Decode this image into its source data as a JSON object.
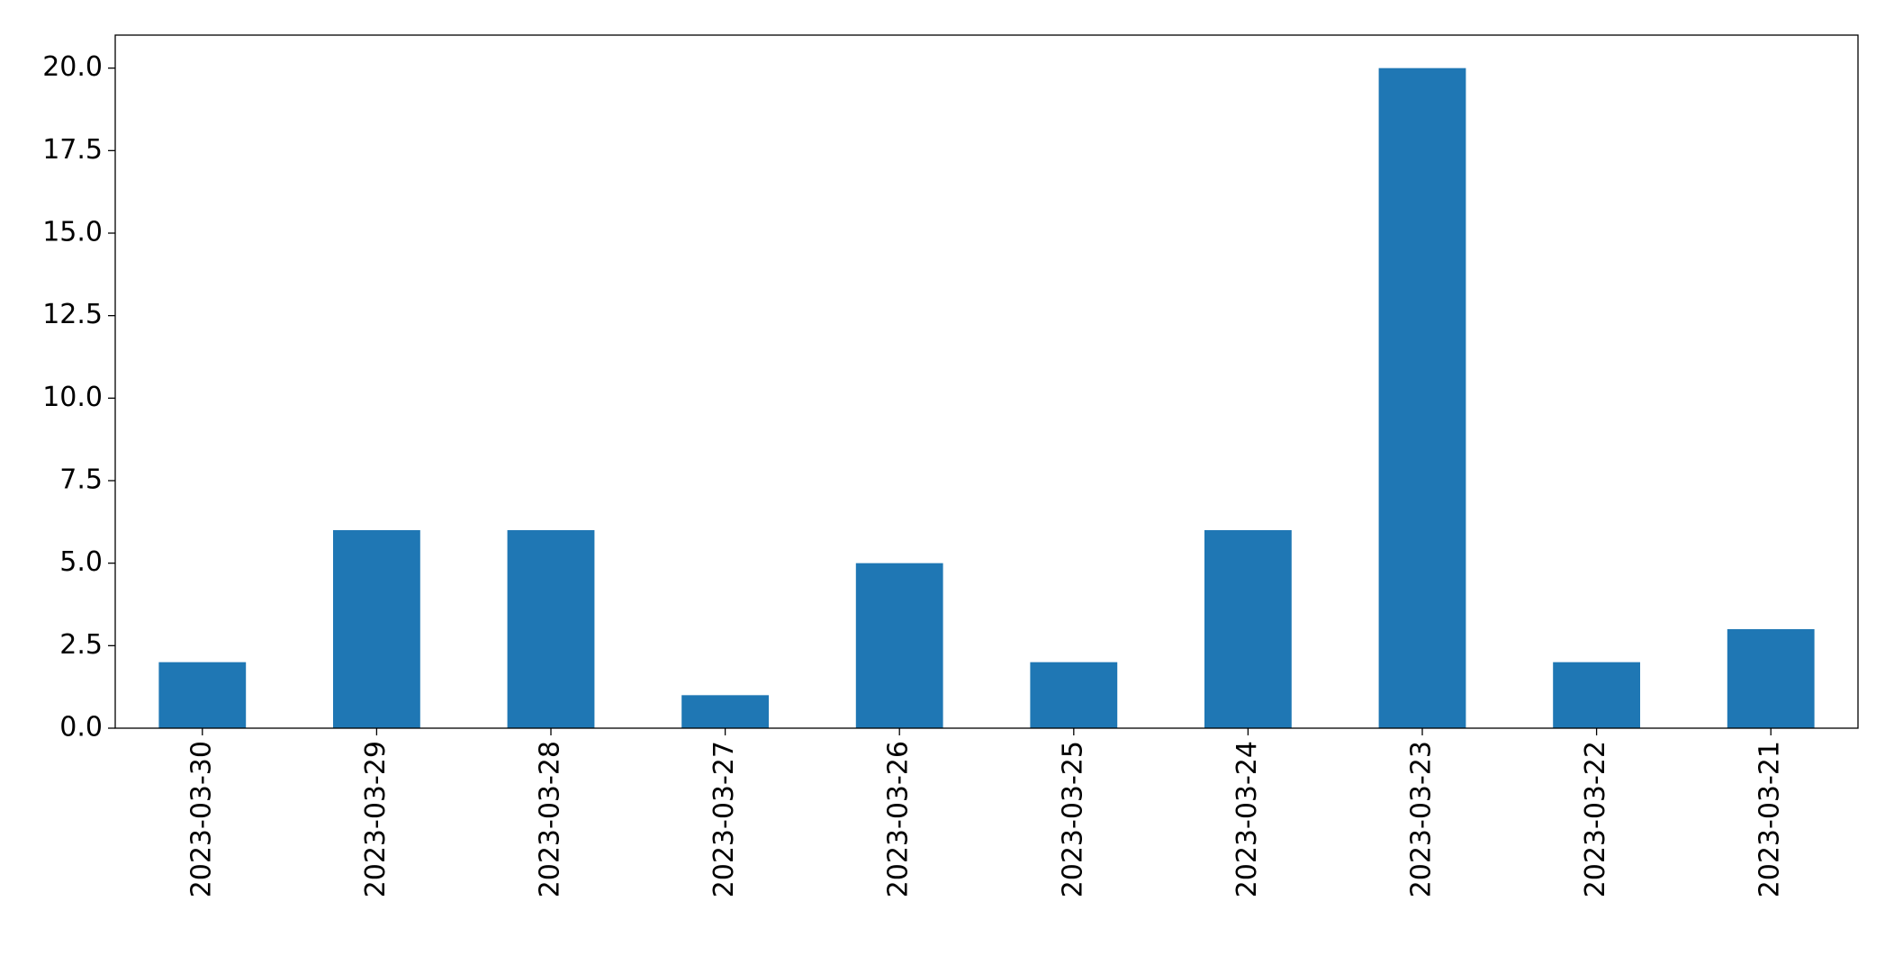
{
  "chart_data": {
    "type": "bar",
    "categories": [
      "2023-03-30",
      "2023-03-29",
      "2023-03-28",
      "2023-03-27",
      "2023-03-26",
      "2023-03-25",
      "2023-03-24",
      "2023-03-23",
      "2023-03-22",
      "2023-03-21"
    ],
    "values": [
      2,
      6,
      6,
      1,
      5,
      2,
      6,
      20,
      2,
      3
    ],
    "color": "#1f77b4",
    "ylim": [
      0,
      21
    ],
    "yticks": [
      {
        "value": 0,
        "label": "0.0"
      },
      {
        "value": 2.5,
        "label": "2.5"
      },
      {
        "value": 5,
        "label": "5.0"
      },
      {
        "value": 7.5,
        "label": "7.5"
      },
      {
        "value": 10,
        "label": "10.0"
      },
      {
        "value": 12.5,
        "label": "12.5"
      },
      {
        "value": 15,
        "label": "15.0"
      },
      {
        "value": 17.5,
        "label": "17.5"
      },
      {
        "value": 20,
        "label": "20.0"
      }
    ],
    "grid": false
  }
}
